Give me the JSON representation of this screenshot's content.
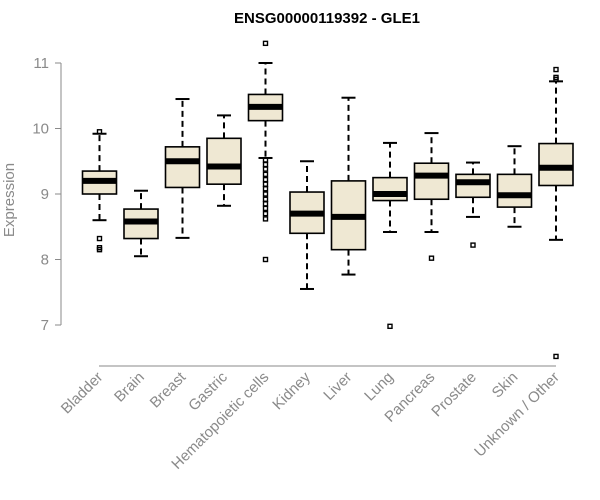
{
  "chart_data": {
    "type": "boxplot",
    "title": "ENSG00000119392 - GLE1",
    "xlabel": "",
    "ylabel": "Expression",
    "ylim": [
      6.4,
      11.4
    ],
    "yticks": [
      7,
      8,
      9,
      10,
      11
    ],
    "grid": false,
    "colors": {
      "box_fill": "#efe8d3",
      "stroke": "#000000",
      "axis": "#8a8a8a"
    },
    "categories": [
      "Bladder",
      "Brain",
      "Breast",
      "Gastric",
      "Hematopoietic cells",
      "Kidney",
      "Liver",
      "Lung",
      "Pancreas",
      "Prostate",
      "Skin",
      "Unknown / Other"
    ],
    "boxes": [
      {
        "q1": 9.0,
        "median": 9.2,
        "q3": 9.35,
        "whisker_low": 8.6,
        "whisker_high": 9.92,
        "outliers": [
          8.32,
          8.18,
          8.15,
          9.95
        ]
      },
      {
        "q1": 8.32,
        "median": 8.58,
        "q3": 8.77,
        "whisker_low": 8.05,
        "whisker_high": 9.05,
        "outliers": []
      },
      {
        "q1": 9.1,
        "median": 9.5,
        "q3": 9.72,
        "whisker_low": 8.33,
        "whisker_high": 10.45,
        "outliers": []
      },
      {
        "q1": 9.15,
        "median": 9.42,
        "q3": 9.85,
        "whisker_low": 8.82,
        "whisker_high": 10.2,
        "outliers": []
      },
      {
        "q1": 10.12,
        "median": 10.33,
        "q3": 10.52,
        "whisker_low": 9.55,
        "whisker_high": 11.0,
        "outliers": [
          11.3,
          9.52,
          9.45,
          9.38,
          9.3,
          9.22,
          9.15,
          9.08,
          9.0,
          8.92,
          8.85,
          8.78,
          8.7,
          8.62,
          8.0
        ]
      },
      {
        "q1": 8.4,
        "median": 8.7,
        "q3": 9.03,
        "whisker_low": 7.55,
        "whisker_high": 9.5,
        "outliers": []
      },
      {
        "q1": 8.15,
        "median": 8.65,
        "q3": 9.2,
        "whisker_low": 7.77,
        "whisker_high": 10.47,
        "outliers": []
      },
      {
        "q1": 8.9,
        "median": 9.0,
        "q3": 9.25,
        "whisker_low": 8.42,
        "whisker_high": 9.78,
        "outliers": [
          6.98
        ]
      },
      {
        "q1": 8.92,
        "median": 9.28,
        "q3": 9.47,
        "whisker_low": 8.42,
        "whisker_high": 9.93,
        "outliers": [
          8.02
        ]
      },
      {
        "q1": 8.95,
        "median": 9.18,
        "q3": 9.3,
        "whisker_low": 8.65,
        "whisker_high": 9.48,
        "outliers": [
          8.22
        ]
      },
      {
        "q1": 8.8,
        "median": 8.98,
        "q3": 9.3,
        "whisker_low": 8.5,
        "whisker_high": 9.73,
        "outliers": []
      },
      {
        "q1": 9.13,
        "median": 9.4,
        "q3": 9.77,
        "whisker_low": 8.3,
        "whisker_high": 10.72,
        "outliers": [
          10.9,
          10.78,
          10.75,
          6.52
        ]
      }
    ]
  }
}
